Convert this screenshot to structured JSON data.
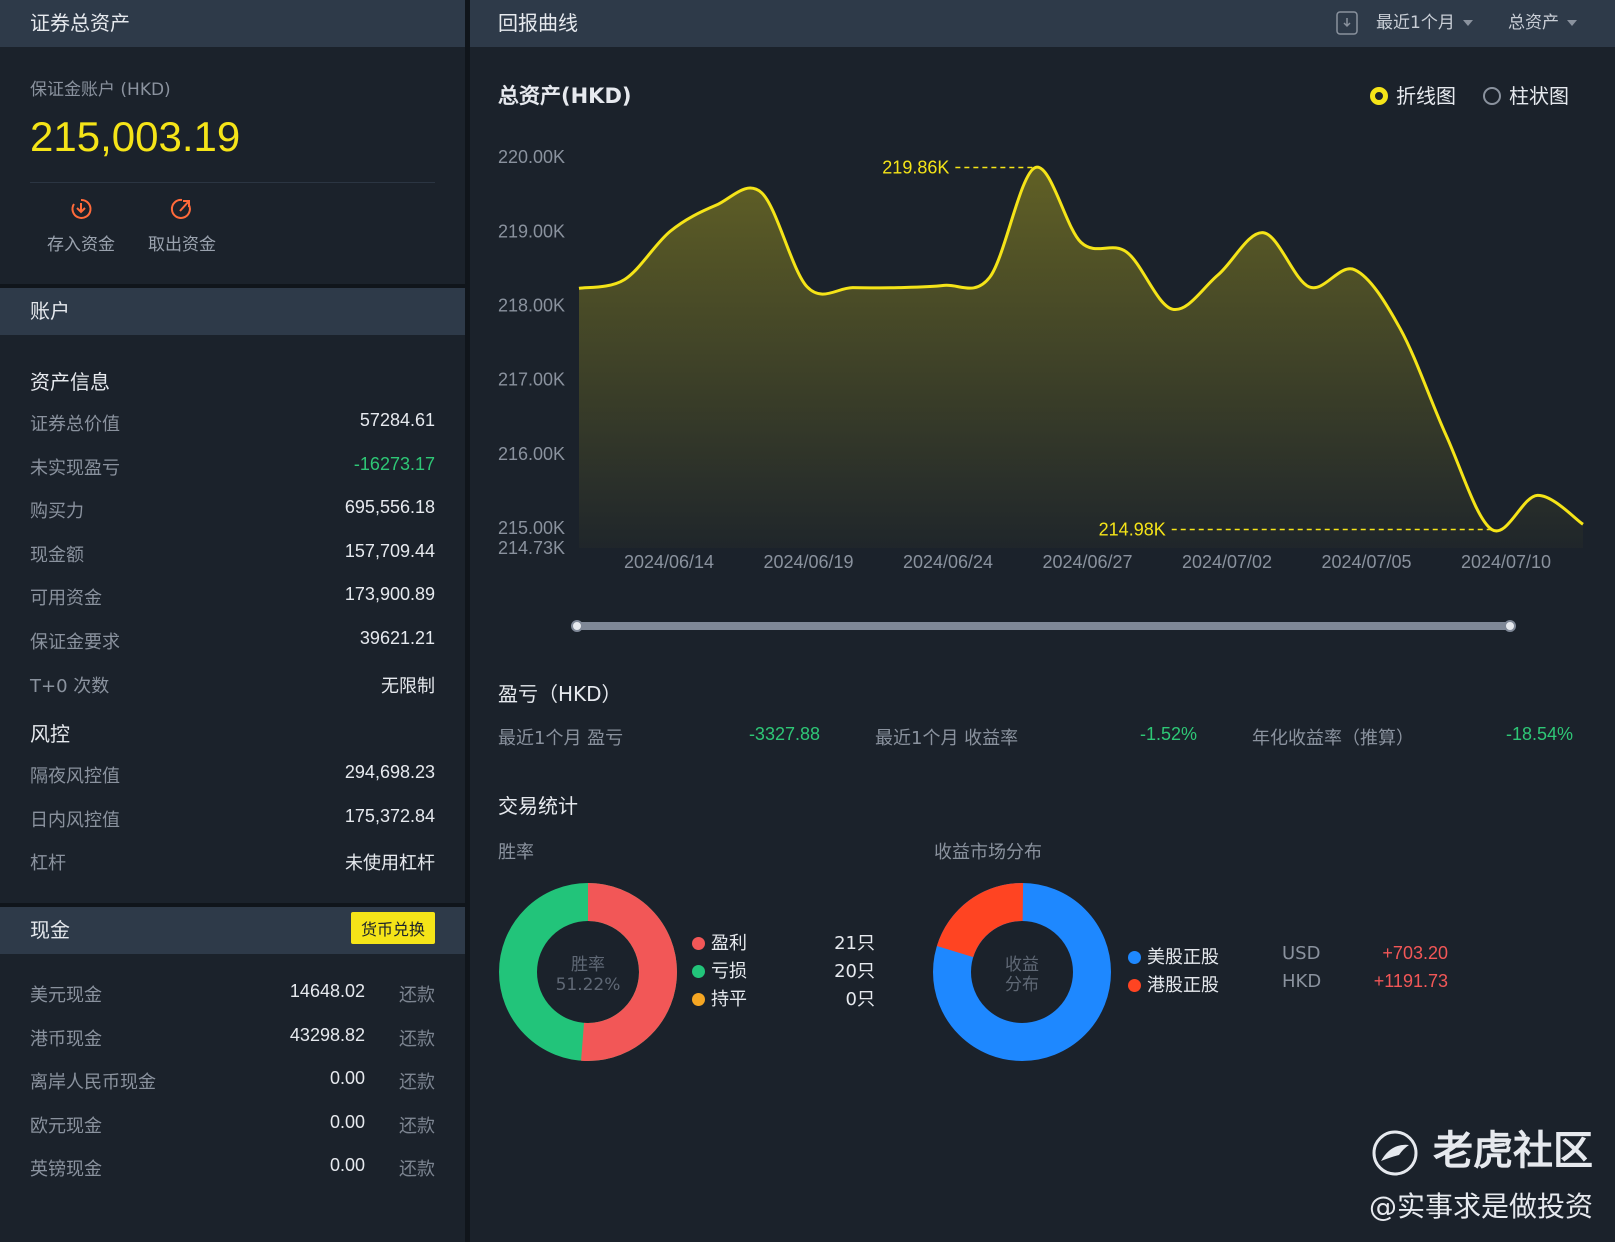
{
  "left": {
    "header": "证券总资产",
    "account_label": "保证金账户 (HKD)",
    "total": "215,003.19",
    "actions": [
      {
        "label": "存入资金",
        "icon": "deposit-icon"
      },
      {
        "label": "取出资金",
        "icon": "withdraw-icon"
      }
    ],
    "account_header": "账户",
    "asset_title": "资产信息",
    "asset_rows": [
      {
        "label": "证券总价值",
        "value": "57284.61"
      },
      {
        "label": "未实现盈亏",
        "value": "-16273.17",
        "color": "#2ec776"
      },
      {
        "label": "购买力",
        "value": "695,556.18"
      },
      {
        "label": "现金额",
        "value": "157,709.44"
      },
      {
        "label": "可用资金",
        "value": "173,900.89"
      },
      {
        "label": "保证金要求",
        "value": "39621.21"
      },
      {
        "label": "T+0 次数",
        "value": "无限制"
      }
    ],
    "risk_title": "风控",
    "risk_rows": [
      {
        "label": "隔夜风控值",
        "value": "294,698.23"
      },
      {
        "label": "日内风控值",
        "value": "175,372.84"
      },
      {
        "label": "杠杆",
        "value": "未使用杠杆"
      }
    ],
    "cash_header": "现金",
    "currency_button": "货币兑换",
    "cash_rows": [
      {
        "label": "美元现金",
        "value": "14648.02",
        "action": "还款"
      },
      {
        "label": "港币现金",
        "value": "43298.82",
        "action": "还款"
      },
      {
        "label": "离岸人民币现金",
        "value": "0.00",
        "action": "还款"
      },
      {
        "label": "欧元现金",
        "value": "0.00",
        "action": "还款"
      },
      {
        "label": "英镑现金",
        "value": "0.00",
        "action": "还款"
      }
    ]
  },
  "right": {
    "header": "回报曲线",
    "period_select": "最近1个月",
    "metric_select": "总资产",
    "chart_title": "总资产(HKD)",
    "chart_modes": [
      {
        "label": "折线图",
        "selected": true
      },
      {
        "label": "柱状图",
        "selected": false
      }
    ],
    "pl_title": "盈亏（HKD）",
    "pl_items": [
      {
        "label": "最近1个月 盈亏",
        "value": "-3327.88"
      },
      {
        "label": "最近1个月 收益率",
        "value": "-1.52%"
      },
      {
        "label": "年化收益率（推算）",
        "value": "-18.54%"
      }
    ],
    "stats_title": "交易统计",
    "winrate_title": "胜率",
    "winrate_center": [
      "胜率",
      "51.22%"
    ],
    "winrate_legend": [
      {
        "label": "盈利",
        "count": "21只",
        "color": "#f25757"
      },
      {
        "label": "亏损",
        "count": "20只",
        "color": "#22c47a"
      },
      {
        "label": "持平",
        "count": "0只",
        "color": "#f5a623"
      }
    ],
    "market_title": "收益市场分布",
    "market_center": [
      "收益",
      "分布"
    ],
    "market_legend": [
      {
        "label": "美股正股",
        "currency": "USD",
        "value": "+703.20",
        "color": "#1e88ff"
      },
      {
        "label": "港股正股",
        "currency": "HKD",
        "value": "+1191.73",
        "color": "#ff4422"
      }
    ]
  },
  "watermark": {
    "brand": "老虎社区",
    "handle": "@实事求是做投资"
  },
  "chart_data": {
    "type": "area",
    "title": "总资产(HKD)",
    "x_tick_labels": [
      "2024/06/14",
      "2024/06/19",
      "2024/06/24",
      "2024/06/27",
      "2024/07/02",
      "2024/07/05",
      "2024/07/10"
    ],
    "y_tick_labels": [
      "214.73K",
      "215.00K",
      "216.00K",
      "217.00K",
      "218.00K",
      "219.00K",
      "220.00K"
    ],
    "y_ticks": [
      214.73,
      215,
      216,
      217,
      218,
      219,
      220
    ],
    "ylim": [
      214.73,
      220.5
    ],
    "series": [
      {
        "values": [
          218.23,
          218.35,
          219.0,
          219.35,
          219.52,
          218.25,
          218.24,
          218.24,
          218.27,
          218.38,
          219.86,
          218.85,
          218.72,
          217.95,
          218.41,
          218.98,
          218.25,
          218.48,
          217.68,
          216.25,
          214.98,
          215.44,
          215.05
        ],
        "color": "#f5e418"
      }
    ],
    "annotations": [
      {
        "label": "219.86K",
        "index": 10,
        "value": 219.86
      },
      {
        "label": "214.98K",
        "index": 20,
        "value": 214.98
      }
    ],
    "grid": false,
    "legend": "none"
  }
}
